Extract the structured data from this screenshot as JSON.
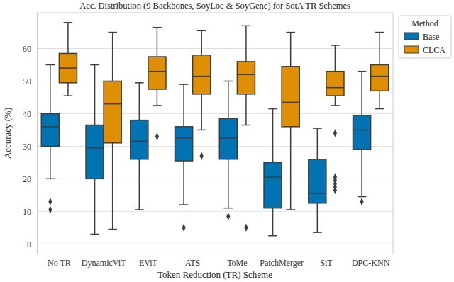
{
  "chart_data": {
    "type": "box",
    "title": "Acc. Distribution (9 Backbones, SoyLoc & SoyGene) for SotA TR Schemes",
    "x_label": "Token Reduction (TR) Scheme",
    "y_label": "Accuracy (%)",
    "legend_title": "Method",
    "legend": "right",
    "grid": true,
    "categories": [
      "No TR",
      "DynamicViT",
      "EViT",
      "ATS",
      "ToMe",
      "PatchMerger",
      "SiT",
      "DPC-KNN"
    ],
    "ylim": [
      -3,
      71
    ],
    "yticks": [
      0,
      10,
      20,
      30,
      40,
      50,
      60
    ],
    "series": [
      {
        "name": "Base",
        "color": "#0173b2",
        "boxes": [
          {
            "min": 20,
            "q1": 30,
            "median": 36,
            "q3": 40,
            "max": 55,
            "outliers": [
              13,
              10.5
            ]
          },
          {
            "min": 3,
            "q1": 20,
            "median": 29.5,
            "q3": 36.5,
            "max": 55,
            "outliers": []
          },
          {
            "min": 10.5,
            "q1": 26,
            "median": 31.5,
            "q3": 38,
            "max": 49.5,
            "outliers": []
          },
          {
            "min": 12,
            "q1": 25.5,
            "median": 32.5,
            "q3": 36,
            "max": 49,
            "outliers": [
              5
            ]
          },
          {
            "min": 11,
            "q1": 26,
            "median": 32.5,
            "q3": 38.5,
            "max": 50,
            "outliers": [
              8.5
            ]
          },
          {
            "min": 2.5,
            "q1": 11,
            "median": 20.5,
            "q3": 25,
            "max": 41.5,
            "outliers": []
          },
          {
            "min": 3.5,
            "q1": 12.5,
            "median": 15.5,
            "q3": 26,
            "max": 35.5,
            "outliers": []
          },
          {
            "min": 14.5,
            "q1": 29,
            "median": 35,
            "q3": 39.5,
            "max": 53,
            "outliers": [
              13
            ]
          }
        ]
      },
      {
        "name": "CLCA",
        "color": "#de8f05",
        "boxes": [
          {
            "min": 45.5,
            "q1": 49.5,
            "median": 54,
            "q3": 58.5,
            "max": 68,
            "outliers": []
          },
          {
            "min": 4.5,
            "q1": 31,
            "median": 43,
            "q3": 50,
            "max": 65,
            "outliers": []
          },
          {
            "min": 42.5,
            "q1": 47.5,
            "median": 53,
            "q3": 57.5,
            "max": 66.5,
            "outliers": [
              33
            ]
          },
          {
            "min": 35,
            "q1": 46,
            "median": 51.5,
            "q3": 58,
            "max": 65.5,
            "outliers": [
              27
            ]
          },
          {
            "min": 36.5,
            "q1": 46,
            "median": 52,
            "q3": 56,
            "max": 67,
            "outliers": [
              5
            ]
          },
          {
            "min": 10.5,
            "q1": 36,
            "median": 43.5,
            "q3": 54.5,
            "max": 65,
            "outliers": []
          },
          {
            "min": 42.5,
            "q1": 45.5,
            "median": 48,
            "q3": 53,
            "max": 61,
            "outliers": [
              34,
              20.5,
              19.5,
              18.5,
              17.5,
              16.5
            ]
          },
          {
            "min": 41.5,
            "q1": 47,
            "median": 51.5,
            "q3": 55,
            "max": 65,
            "outliers": []
          }
        ]
      }
    ]
  }
}
